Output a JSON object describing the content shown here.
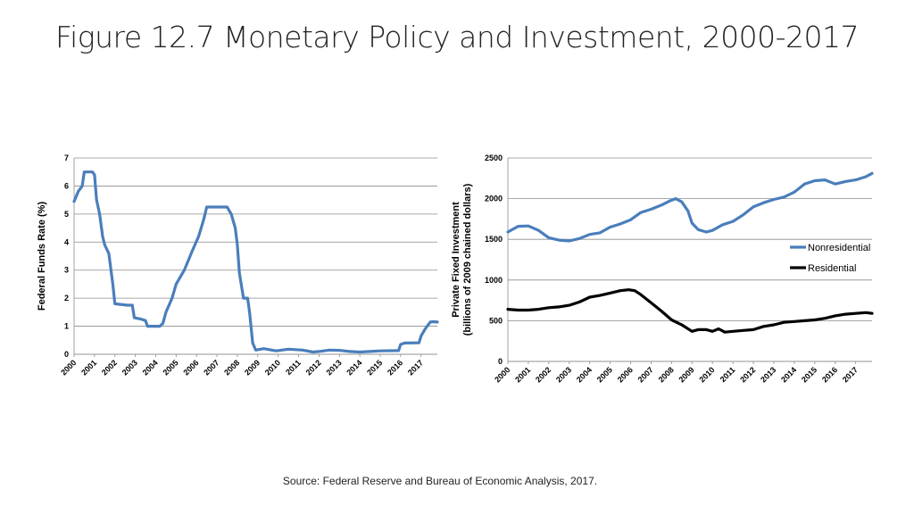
{
  "slide": {
    "title": "Figure 12.7 Monetary Policy and Investment, 2000-2017",
    "source": "Source: Federal Reserve and Bureau of Economic Analysis, 2017."
  },
  "chart_data": [
    {
      "type": "line",
      "ylabel": "Federal Funds Rate (%)",
      "xlabel": "",
      "ylim": [
        0,
        7
      ],
      "xlim": [
        2000,
        2017.8
      ],
      "yticks": [
        "0",
        "1",
        "2",
        "3",
        "4",
        "5",
        "6",
        "7"
      ],
      "xticks": [
        "2000",
        "2001",
        "2002",
        "2003",
        "2004",
        "2005",
        "2006",
        "2007",
        "2008",
        "2009",
        "2010",
        "2011",
        "2012",
        "2013",
        "2014",
        "2015",
        "2016",
        "2017"
      ],
      "grid": true,
      "colors": {
        "line": "#4a7ebb"
      },
      "series": [
        {
          "x": [
            2000.0,
            2000.2,
            2000.4,
            2000.5,
            2000.9,
            2001.0,
            2001.1,
            2001.25,
            2001.4,
            2001.5,
            2001.7,
            2001.9,
            2002.0,
            2002.6,
            2002.85,
            2002.95,
            2003.3,
            2003.5,
            2003.6,
            2004.2,
            2004.35,
            2004.5,
            2004.8,
            2005.0,
            2005.4,
            2005.8,
            2006.1,
            2006.35,
            2006.5,
            2007.5,
            2007.7,
            2007.9,
            2008.0,
            2008.1,
            2008.3,
            2008.5,
            2008.6,
            2008.75,
            2008.9,
            2009.3,
            2009.9,
            2010.5,
            2011.2,
            2011.7,
            2012.0,
            2012.5,
            2013.0,
            2013.5,
            2014.0,
            2014.5,
            2015.0,
            2015.9,
            2016.0,
            2016.2,
            2016.9,
            2017.0,
            2017.2,
            2017.45,
            2017.6,
            2017.8
          ],
          "y": [
            5.45,
            5.8,
            6.0,
            6.5,
            6.5,
            6.4,
            5.5,
            5.0,
            4.2,
            3.9,
            3.6,
            2.5,
            1.8,
            1.75,
            1.75,
            1.3,
            1.25,
            1.2,
            1.0,
            1.0,
            1.1,
            1.5,
            2.0,
            2.5,
            3.0,
            3.7,
            4.2,
            4.8,
            5.25,
            5.25,
            5.0,
            4.5,
            3.9,
            2.9,
            2.0,
            2.0,
            1.5,
            0.4,
            0.15,
            0.2,
            0.12,
            0.18,
            0.15,
            0.08,
            0.1,
            0.15,
            0.14,
            0.1,
            0.08,
            0.1,
            0.12,
            0.13,
            0.35,
            0.4,
            0.41,
            0.65,
            0.9,
            1.15,
            1.16,
            1.15
          ]
        }
      ]
    },
    {
      "type": "line",
      "ylabel": "Private Fixed Investment (billions of 2009 chained dollars)",
      "xlabel": "",
      "ylim": [
        0,
        2500
      ],
      "xlim": [
        2000,
        2017.8
      ],
      "yticks": [
        "0",
        "500",
        "1000",
        "1500",
        "2000",
        "2500"
      ],
      "xticks": [
        "2000",
        "2001",
        "2002",
        "2003",
        "2004",
        "2005",
        "2006",
        "2007",
        "2008",
        "2009",
        "2010",
        "2011",
        "2012",
        "2013",
        "2014",
        "2015",
        "2016",
        "2017"
      ],
      "grid": true,
      "legend_position": "right",
      "colors": {
        "Nonresidential": "#4a7ebb",
        "Residential": "#000000"
      },
      "series": [
        {
          "name": "Nonresidential",
          "x": [
            2000.0,
            2000.5,
            2001.0,
            2001.5,
            2002.0,
            2002.5,
            2003.0,
            2003.5,
            2004.0,
            2004.5,
            2005.0,
            2005.5,
            2006.0,
            2006.5,
            2007.0,
            2007.5,
            2007.9,
            2008.2,
            2008.5,
            2008.8,
            2009.0,
            2009.3,
            2009.7,
            2010.0,
            2010.5,
            2011.0,
            2011.5,
            2012.0,
            2012.5,
            2013.0,
            2013.5,
            2014.0,
            2014.5,
            2015.0,
            2015.5,
            2016.0,
            2016.5,
            2017.0,
            2017.5,
            2017.8
          ],
          "y": [
            1590,
            1660,
            1665,
            1610,
            1520,
            1490,
            1480,
            1510,
            1560,
            1580,
            1650,
            1690,
            1740,
            1830,
            1870,
            1920,
            1970,
            2000,
            1960,
            1850,
            1700,
            1620,
            1590,
            1610,
            1680,
            1720,
            1800,
            1900,
            1950,
            1990,
            2020,
            2080,
            2180,
            2220,
            2230,
            2180,
            2210,
            2230,
            2270,
            2310
          ]
        },
        {
          "name": "Residential",
          "x": [
            2000.0,
            2000.5,
            2001.0,
            2001.5,
            2002.0,
            2002.5,
            2003.0,
            2003.5,
            2004.0,
            2004.5,
            2005.0,
            2005.5,
            2005.9,
            2006.2,
            2006.5,
            2007.0,
            2007.5,
            2008.0,
            2008.5,
            2009.0,
            2009.3,
            2009.7,
            2010.0,
            2010.3,
            2010.6,
            2011.0,
            2011.5,
            2012.0,
            2012.5,
            2013.0,
            2013.5,
            2014.0,
            2014.5,
            2015.0,
            2015.5,
            2016.0,
            2016.5,
            2017.0,
            2017.5,
            2017.8
          ],
          "y": [
            640,
            630,
            630,
            640,
            660,
            670,
            690,
            730,
            790,
            810,
            840,
            870,
            880,
            870,
            820,
            720,
            620,
            510,
            450,
            370,
            390,
            390,
            370,
            400,
            360,
            370,
            380,
            390,
            430,
            450,
            480,
            490,
            500,
            510,
            530,
            560,
            580,
            590,
            600,
            590
          ]
        }
      ]
    }
  ]
}
